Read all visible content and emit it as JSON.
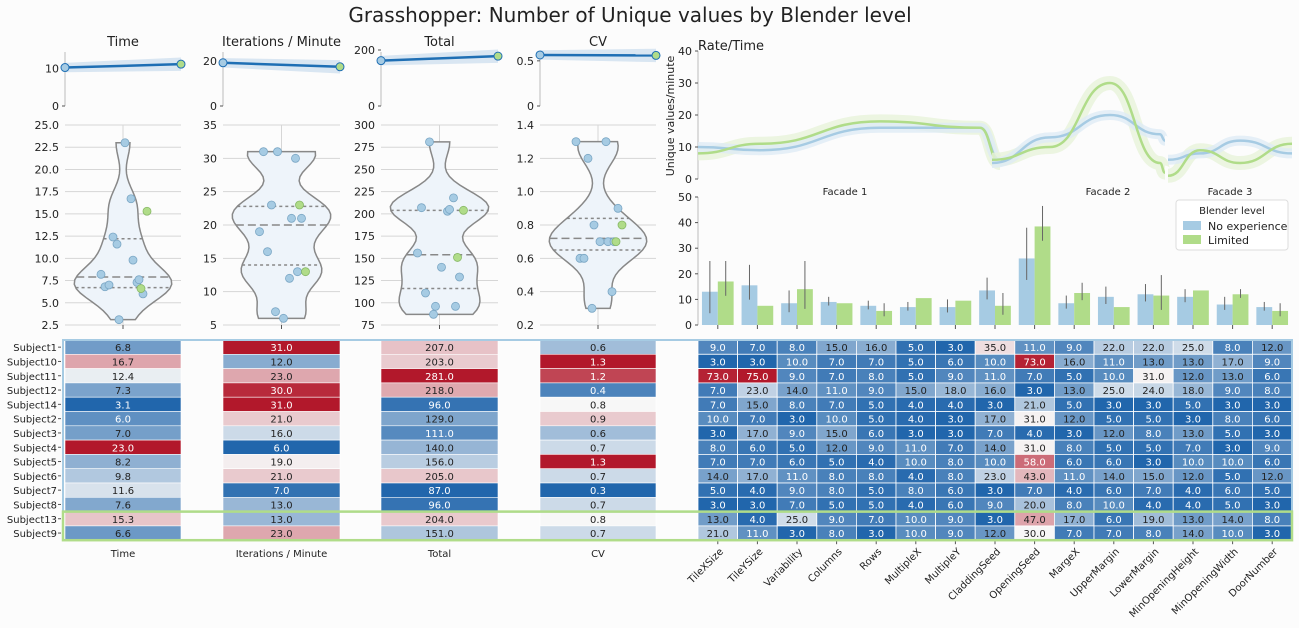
{
  "title": "Grasshopper: Number of Unique values by Blender level",
  "colors": {
    "no_experience": "#a6cbe3",
    "limited": "#b0dc89",
    "trend_line": "#1f6fb4",
    "violin_edge": "#888888",
    "heat_low": "#2166ac",
    "heat_mid": "#f7f7f7",
    "heat_high": "#b2182b"
  },
  "chart_data": [
    {
      "type": "line",
      "title": "Time",
      "ylim": [
        0,
        15
      ],
      "yticks": [
        0,
        10
      ],
      "values": [
        10.3,
        11.2
      ]
    },
    {
      "type": "line",
      "title": "Iterations / Minute",
      "ylim": [
        0,
        25
      ],
      "yticks": [
        0,
        20
      ],
      "values": [
        19.3,
        17.5
      ]
    },
    {
      "type": "line",
      "title": "Total",
      "ylim": [
        0,
        200
      ],
      "yticks": [
        0,
        200
      ],
      "values": [
        162,
        178
      ]
    },
    {
      "type": "line",
      "title": "CV",
      "ylim": [
        0,
        0.62
      ],
      "yticks": [
        0,
        0.5
      ],
      "values": [
        0.565,
        0.56
      ]
    },
    {
      "type": "scatter",
      "subtype": "violin",
      "ylim": [
        2.5,
        25
      ],
      "yticks": [
        2.5,
        5.0,
        7.5,
        10.0,
        12.5,
        15.0,
        17.5,
        20.0,
        22.5,
        25.0
      ],
      "quartiles": [
        6.7,
        7.9,
        12.2
      ],
      "no_experience": [
        6.8,
        16.7,
        12.4,
        7.3,
        3.1,
        6.0,
        7.0,
        23.0,
        8.2,
        9.8,
        11.6,
        7.6
      ],
      "limited": [
        15.3,
        6.6
      ]
    },
    {
      "type": "scatter",
      "subtype": "violin",
      "ylim": [
        5,
        35
      ],
      "yticks": [
        5,
        10,
        15,
        20,
        25,
        30,
        35
      ],
      "quartiles": [
        14,
        20,
        22.8
      ],
      "no_experience": [
        31.0,
        12.0,
        23.0,
        30.0,
        31.0,
        21.0,
        16.0,
        6.0,
        19.0,
        21.0,
        7.0,
        13.0
      ],
      "limited": [
        13.0,
        23.0
      ]
    },
    {
      "type": "scatter",
      "subtype": "violin",
      "ylim": [
        75,
        300
      ],
      "yticks": [
        75,
        100,
        125,
        150,
        175,
        200,
        225,
        250,
        275,
        300
      ],
      "quartiles": [
        116,
        154,
        204
      ],
      "no_experience": [
        207.0,
        203.0,
        281.0,
        218.0,
        96.0,
        129.0,
        111.0,
        140.0,
        156.0,
        205.0,
        87.0,
        96.0
      ],
      "limited": [
        204.0,
        151.0
      ]
    },
    {
      "type": "scatter",
      "subtype": "violin",
      "ylim": [
        0.2,
        1.4
      ],
      "yticks": [
        0.2,
        0.4,
        0.6,
        0.8,
        1.0,
        1.2,
        1.4
      ],
      "quartiles": [
        0.65,
        0.72,
        0.84
      ],
      "no_experience": [
        0.6,
        1.3,
        1.2,
        0.4,
        0.8,
        0.9,
        0.6,
        0.7,
        1.3,
        0.7,
        0.3,
        0.7
      ],
      "limited": [
        0.8,
        0.7
      ]
    },
    {
      "type": "line",
      "title": "Rate/Time",
      "ylabel": "Unique values/minute",
      "ylim": [
        0,
        40
      ],
      "yticks": [
        0,
        10,
        20,
        30,
        40
      ],
      "x_labels": [
        "Facade 1",
        "Facade 2",
        "Facade 3"
      ]
    },
    {
      "type": "bar",
      "ylim": [
        0,
        50
      ],
      "yticks": [
        0,
        10,
        20,
        30,
        40,
        50
      ],
      "legend_title": "Blender level",
      "categories": [
        "TileXSize",
        "TileYSize",
        "Variability",
        "Columns",
        "Rows",
        "MultipleX",
        "MultipleY",
        "CladdingSeed",
        "OpeningSeed",
        "MargeX",
        "UpperMargin",
        "LowerMargin",
        "MinOpeningHeight",
        "MinOpeningWidth",
        "DoorNumber"
      ],
      "series": [
        {
          "name": "No experience",
          "values": [
            13,
            15.5,
            8.5,
            9,
            7.5,
            7,
            7,
            13.5,
            26,
            8.5,
            11,
            12,
            11,
            8,
            7
          ]
        },
        {
          "name": "Limited",
          "values": [
            17,
            7.5,
            14,
            8.5,
            5.5,
            10.5,
            9.5,
            7.5,
            38.5,
            12.5,
            7,
            11.5,
            13.5,
            12,
            5.5
          ]
        }
      ],
      "errors": [
        [
          12,
          8,
          5,
          2,
          2,
          2,
          3,
          5,
          12,
          3,
          4,
          4,
          3,
          3,
          2
        ],
        [
          8,
          0,
          11,
          0,
          3,
          0,
          0,
          5,
          8,
          4,
          0,
          8,
          0,
          2,
          3
        ]
      ]
    },
    {
      "type": "heatmap",
      "rows": [
        "Subject1",
        "Subject10",
        "Subject11",
        "Subject12",
        "Subject14",
        "Subject2",
        "Subject3",
        "Subject4",
        "Subject5",
        "Subject6",
        "Subject7",
        "Subject8",
        "Subject13",
        "Subject9"
      ],
      "metric_columns": [
        "Time",
        "Iterations / Minute",
        "Total",
        "CV"
      ],
      "metric_values": [
        [
          6.8,
          31.0,
          207.0,
          0.6
        ],
        [
          16.7,
          12.0,
          203.0,
          1.3
        ],
        [
          12.4,
          23.0,
          281.0,
          1.2
        ],
        [
          7.3,
          30.0,
          218.0,
          0.4
        ],
        [
          3.1,
          31.0,
          96.0,
          0.8
        ],
        [
          6.0,
          21.0,
          129.0,
          0.9
        ],
        [
          7.0,
          16.0,
          111.0,
          0.6
        ],
        [
          23.0,
          6.0,
          140.0,
          0.7
        ],
        [
          8.2,
          19.0,
          156.0,
          1.3
        ],
        [
          9.8,
          21.0,
          205.0,
          0.7
        ],
        [
          11.6,
          7.0,
          87.0,
          0.3
        ],
        [
          7.6,
          13.0,
          96.0,
          0.7
        ],
        [
          15.3,
          13.0,
          204.0,
          0.8
        ],
        [
          6.6,
          23.0,
          151.0,
          0.7
        ]
      ],
      "parameter_columns": [
        "TileXSize",
        "TileYSize",
        "Variability",
        "Columns",
        "Rows",
        "MultipleX",
        "MultipleY",
        "CladdingSeed",
        "OpeningSeed",
        "MargeX",
        "UpperMargin",
        "LowerMargin",
        "MinOpeningHeight",
        "MinOpeningWidth",
        "DoorNumber"
      ],
      "parameter_values": [
        [
          9.0,
          7.0,
          8.0,
          15.0,
          16.0,
          5.0,
          3.0,
          35.0,
          11.0,
          9.0,
          22.0,
          22.0,
          25.0,
          8.0,
          12.0
        ],
        [
          3.0,
          3.0,
          10.0,
          7.0,
          7.0,
          5.0,
          6.0,
          10.0,
          73.0,
          16.0,
          11.0,
          13.0,
          13.0,
          17.0,
          9.0
        ],
        [
          73.0,
          75.0,
          9.0,
          7.0,
          8.0,
          5.0,
          9.0,
          11.0,
          7.0,
          5.0,
          10.0,
          31.0,
          12.0,
          13.0,
          6.0
        ],
        [
          7.0,
          23.0,
          14.0,
          11.0,
          9.0,
          15.0,
          18.0,
          16.0,
          3.0,
          13.0,
          25.0,
          24.0,
          18.0,
          9.0,
          8.0
        ],
        [
          7.0,
          15.0,
          8.0,
          7.0,
          5.0,
          4.0,
          4.0,
          3.0,
          21.0,
          5.0,
          3.0,
          3.0,
          5.0,
          3.0,
          3.0
        ],
        [
          10.0,
          7.0,
          3.0,
          10.0,
          5.0,
          4.0,
          3.0,
          17.0,
          31.0,
          12.0,
          5.0,
          5.0,
          3.0,
          8.0,
          6.0
        ],
        [
          3.0,
          17.0,
          9.0,
          15.0,
          6.0,
          3.0,
          3.0,
          7.0,
          4.0,
          3.0,
          12.0,
          8.0,
          13.0,
          5.0,
          3.0
        ],
        [
          8.0,
          6.0,
          5.0,
          12.0,
          9.0,
          11.0,
          7.0,
          14.0,
          31.0,
          8.0,
          5.0,
          5.0,
          7.0,
          3.0,
          9.0
        ],
        [
          7.0,
          7.0,
          6.0,
          5.0,
          4.0,
          10.0,
          8.0,
          10.0,
          58.0,
          6.0,
          6.0,
          3.0,
          10.0,
          10.0,
          6.0
        ],
        [
          14.0,
          17.0,
          11.0,
          8.0,
          8.0,
          4.0,
          8.0,
          23.0,
          43.0,
          11.0,
          14.0,
          15.0,
          12.0,
          5.0,
          12.0
        ],
        [
          5.0,
          4.0,
          9.0,
          8.0,
          5.0,
          8.0,
          6.0,
          3.0,
          7.0,
          4.0,
          6.0,
          7.0,
          4.0,
          6.0,
          5.0
        ],
        [
          3.0,
          3.0,
          7.0,
          5.0,
          5.0,
          4.0,
          6.0,
          9.0,
          20.0,
          8.0,
          10.0,
          4.0,
          4.0,
          5.0,
          3.0
        ],
        [
          13.0,
          4.0,
          25.0,
          9.0,
          7.0,
          10.0,
          9.0,
          3.0,
          47.0,
          17.0,
          6.0,
          19.0,
          13.0,
          14.0,
          8.0
        ],
        [
          21.0,
          11.0,
          3.0,
          8.0,
          3.0,
          10.0,
          9.0,
          12.0,
          30.0,
          7.0,
          7.0,
          8.0,
          14.0,
          10.0,
          3.0
        ]
      ]
    }
  ]
}
